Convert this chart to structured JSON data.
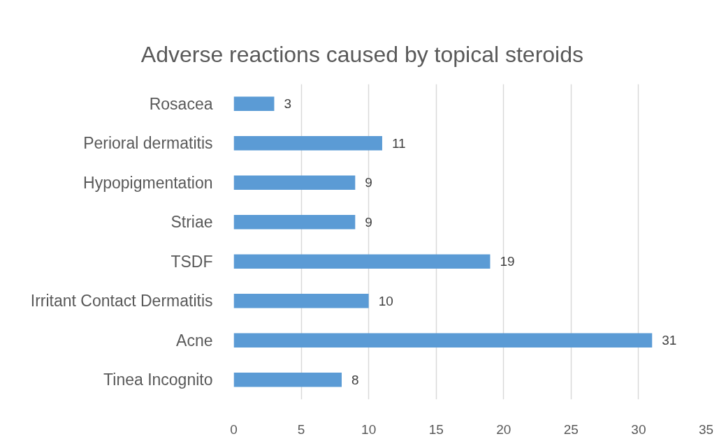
{
  "chart_data": {
    "type": "bar",
    "orientation": "horizontal",
    "title": "Adverse reactions caused by topical steroids",
    "categories": [
      "Rosacea",
      "Perioral dermatitis",
      "Hypopigmentation",
      "Striae",
      "TSDF",
      "Irritant Contact Dermatitis",
      "Acne",
      "Tinea Incognito"
    ],
    "values": [
      3,
      11,
      9,
      9,
      19,
      10,
      31,
      8
    ],
    "color": "#5b9bd5",
    "xlim": [
      0,
      35
    ],
    "xticks": [
      0,
      5,
      10,
      15,
      20,
      25,
      30,
      35
    ],
    "grid": "x",
    "data_labels": true
  }
}
